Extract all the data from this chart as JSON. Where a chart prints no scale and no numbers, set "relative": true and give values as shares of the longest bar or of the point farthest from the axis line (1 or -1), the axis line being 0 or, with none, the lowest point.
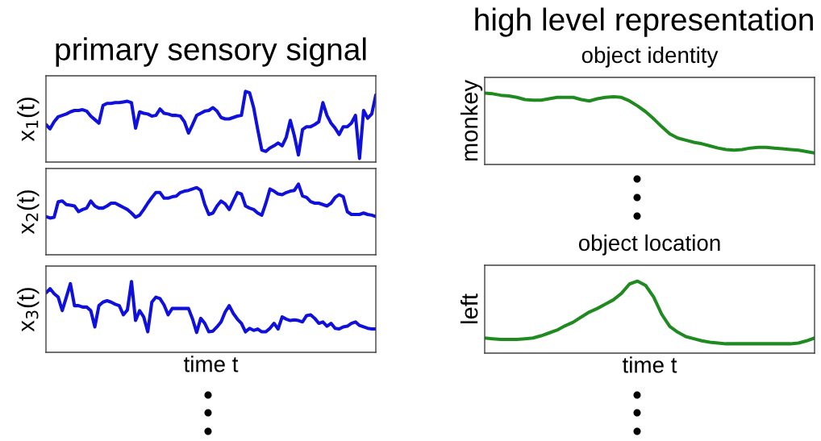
{
  "chart_data": [
    {
      "type": "line",
      "relative": true,
      "title": "primary sensory signal",
      "ylabel": "x$_{1}$(t)",
      "tick_labels": false,
      "categories": [
        null,
        null,
        null,
        null,
        null,
        null,
        null,
        null,
        null,
        null,
        null,
        null,
        null,
        null,
        null,
        null,
        null,
        null,
        null,
        null,
        null,
        null,
        null,
        null,
        null,
        null,
        null,
        null,
        null,
        null,
        null,
        null,
        null,
        null,
        null,
        null,
        null,
        null,
        null,
        null,
        null,
        null,
        null,
        null,
        null,
        null,
        null,
        null,
        null,
        null,
        null,
        null,
        null,
        null,
        null,
        null,
        null,
        null,
        null,
        null,
        null,
        null,
        null,
        null,
        null,
        null,
        null,
        null,
        null,
        null,
        null,
        null,
        null,
        null,
        null,
        null,
        null,
        null,
        null,
        null,
        null,
        null
      ],
      "series": [
        {
          "color": "#1010dd",
          "values": [
            0.53,
            0.47,
            0.57,
            0.64,
            0.66,
            0.68,
            0.71,
            0.73,
            0.73,
            0.74,
            0.72,
            0.65,
            0.6,
            0.55,
            0.8,
            0.83,
            0.83,
            0.84,
            0.84,
            0.85,
            0.86,
            0.84,
            0.48,
            0.71,
            0.69,
            0.68,
            0.65,
            0.66,
            0.75,
            0.69,
            0.68,
            0.66,
            0.66,
            0.65,
            0.57,
            0.41,
            0.53,
            0.66,
            0.69,
            0.72,
            0.73,
            0.77,
            0.72,
            0.63,
            0.61,
            0.61,
            0.63,
            0.65,
            0.66,
            1.0,
            0.98,
            0.77,
            0.46,
            0.17,
            0.15,
            0.2,
            0.23,
            0.27,
            0.23,
            0.35,
            0.59,
            0.37,
            0.1,
            0.46,
            0.5,
            0.5,
            0.53,
            0.57,
            0.84,
            0.66,
            0.55,
            0.48,
            0.39,
            0.5,
            0.5,
            0.55,
            0.66,
            0.05,
            0.73,
            0.62,
            0.68,
            0.95
          ]
        }
      ]
    },
    {
      "type": "line",
      "relative": true,
      "ylabel": "x$_{2}$(t)",
      "tick_labels": false,
      "categories": [
        null,
        null,
        null,
        null,
        null,
        null,
        null,
        null,
        null,
        null,
        null,
        null,
        null,
        null,
        null,
        null,
        null,
        null,
        null,
        null,
        null,
        null,
        null,
        null,
        null,
        null,
        null,
        null,
        null,
        null,
        null,
        null,
        null,
        null,
        null,
        null,
        null,
        null,
        null,
        null,
        null,
        null,
        null,
        null,
        null,
        null,
        null,
        null,
        null,
        null,
        null,
        null,
        null,
        null,
        null,
        null,
        null,
        null,
        null,
        null,
        null,
        null,
        null,
        null,
        null,
        null,
        null,
        null,
        null,
        null,
        null,
        null,
        null,
        null,
        null,
        null,
        null,
        null,
        null,
        null,
        null,
        null
      ],
      "series": [
        {
          "color": "#1010dd",
          "values": [
            0.54,
            0.52,
            0.53,
            0.75,
            0.76,
            0.71,
            0.7,
            0.69,
            0.61,
            0.64,
            0.66,
            0.76,
            0.69,
            0.66,
            0.66,
            0.69,
            0.73,
            0.73,
            0.7,
            0.67,
            0.64,
            0.59,
            0.53,
            0.56,
            0.64,
            0.73,
            0.81,
            0.88,
            0.88,
            0.8,
            0.8,
            0.82,
            0.83,
            0.88,
            0.9,
            0.91,
            0.93,
            0.95,
            0.91,
            0.71,
            0.57,
            0.59,
            0.69,
            0.76,
            0.72,
            0.64,
            0.76,
            0.88,
            0.86,
            0.69,
            0.66,
            0.64,
            0.59,
            0.56,
            0.73,
            0.93,
            0.9,
            0.86,
            0.85,
            0.88,
            0.9,
            0.91,
            1.0,
            0.83,
            0.81,
            0.75,
            0.73,
            0.73,
            0.71,
            0.69,
            0.73,
            0.81,
            0.85,
            0.82,
            0.61,
            0.57,
            0.57,
            0.57,
            0.59,
            0.57,
            0.56,
            0.54
          ]
        }
      ]
    },
    {
      "type": "line",
      "relative": true,
      "ylabel": "x$_{3}$(t)",
      "xlabel": "time t",
      "tick_labels": false,
      "categories": [
        null,
        null,
        null,
        null,
        null,
        null,
        null,
        null,
        null,
        null,
        null,
        null,
        null,
        null,
        null,
        null,
        null,
        null,
        null,
        null,
        null,
        null,
        null,
        null,
        null,
        null,
        null,
        null,
        null,
        null,
        null,
        null,
        null,
        null,
        null,
        null,
        null,
        null,
        null,
        null,
        null,
        null,
        null,
        null,
        null,
        null,
        null,
        null,
        null,
        null,
        null,
        null,
        null,
        null,
        null,
        null,
        null,
        null,
        null,
        null,
        null,
        null,
        null,
        null,
        null,
        null,
        null,
        null,
        null,
        null,
        null,
        null,
        null,
        null,
        null,
        null,
        null,
        null,
        null,
        null,
        null,
        null
      ],
      "series": [
        {
          "color": "#1010dd",
          "values": [
            0.84,
            0.9,
            0.83,
            0.78,
            0.59,
            0.78,
            0.97,
            0.66,
            0.66,
            0.64,
            0.64,
            0.59,
            0.36,
            0.66,
            0.71,
            0.73,
            0.71,
            0.68,
            0.66,
            0.53,
            0.6,
            1.0,
            0.45,
            0.59,
            0.5,
            0.29,
            0.71,
            0.78,
            0.76,
            0.67,
            0.53,
            0.62,
            0.62,
            0.62,
            0.62,
            0.62,
            0.47,
            0.28,
            0.48,
            0.41,
            0.29,
            0.3,
            0.36,
            0.43,
            0.57,
            0.66,
            0.55,
            0.47,
            0.41,
            0.29,
            0.34,
            0.31,
            0.33,
            0.29,
            0.29,
            0.34,
            0.41,
            0.33,
            0.5,
            0.47,
            0.45,
            0.46,
            0.45,
            0.43,
            0.52,
            0.53,
            0.48,
            0.41,
            0.43,
            0.37,
            0.41,
            0.34,
            0.33,
            0.36,
            0.37,
            0.41,
            0.43,
            0.38,
            0.36,
            0.34,
            0.33,
            0.33
          ]
        }
      ]
    },
    {
      "type": "line",
      "relative": true,
      "title": "high level representation",
      "subtitle": "object identity",
      "ylabel": "monkey",
      "tick_labels": false,
      "categories": [
        null,
        null,
        null,
        null,
        null,
        null,
        null,
        null,
        null,
        null,
        null,
        null,
        null,
        null,
        null,
        null,
        null,
        null,
        null,
        null,
        null,
        null,
        null,
        null,
        null,
        null,
        null,
        null,
        null,
        null,
        null,
        null,
        null,
        null,
        null,
        null,
        null,
        null,
        null,
        null,
        null,
        null
      ],
      "series": [
        {
          "color": "#1f8a1f",
          "values": [
            1.0,
            0.99,
            0.97,
            0.96,
            0.94,
            0.91,
            0.9,
            0.9,
            0.92,
            0.94,
            0.94,
            0.94,
            0.91,
            0.89,
            0.92,
            0.94,
            0.95,
            0.94,
            0.89,
            0.82,
            0.74,
            0.64,
            0.53,
            0.43,
            0.37,
            0.34,
            0.31,
            0.29,
            0.26,
            0.23,
            0.21,
            0.2,
            0.21,
            0.23,
            0.24,
            0.24,
            0.23,
            0.22,
            0.21,
            0.2,
            0.18,
            0.16
          ]
        }
      ]
    },
    {
      "type": "line",
      "relative": true,
      "subtitle": "object location",
      "ylabel": "left",
      "xlabel": "time t",
      "tick_labels": false,
      "categories": [
        null,
        null,
        null,
        null,
        null,
        null,
        null,
        null,
        null,
        null,
        null,
        null,
        null,
        null,
        null,
        null,
        null,
        null,
        null,
        null,
        null,
        null,
        null,
        null,
        null,
        null,
        null,
        null,
        null,
        null,
        null,
        null,
        null,
        null,
        null,
        null,
        null,
        null,
        null,
        null,
        null,
        null
      ],
      "series": [
        {
          "color": "#1f8a1f",
          "values": [
            0.21,
            0.2,
            0.19,
            0.19,
            0.19,
            0.2,
            0.21,
            0.24,
            0.28,
            0.32,
            0.38,
            0.43,
            0.5,
            0.57,
            0.62,
            0.68,
            0.74,
            0.83,
            0.96,
            1.0,
            0.94,
            0.78,
            0.54,
            0.37,
            0.29,
            0.23,
            0.2,
            0.17,
            0.15,
            0.14,
            0.13,
            0.13,
            0.13,
            0.13,
            0.13,
            0.13,
            0.13,
            0.13,
            0.13,
            0.14,
            0.17,
            0.21
          ]
        }
      ]
    }
  ]
}
